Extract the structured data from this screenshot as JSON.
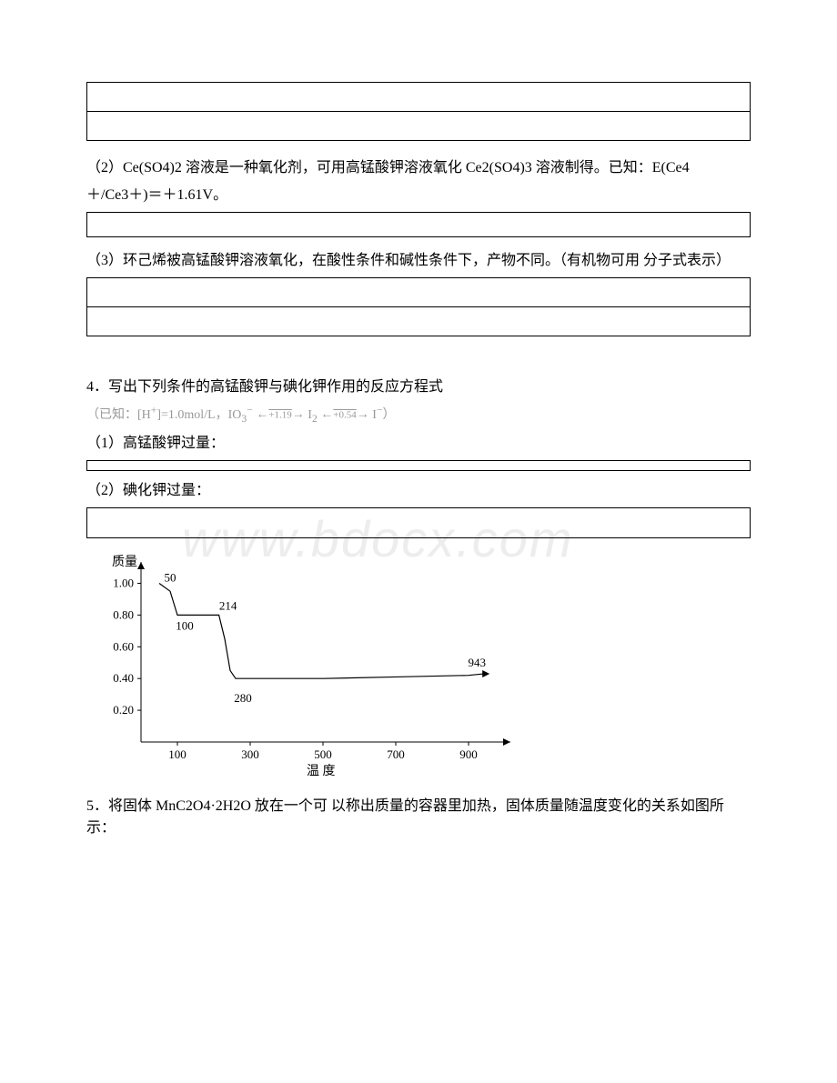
{
  "watermark": "www.bdocx.com",
  "q2": {
    "text_a": "（2）Ce(SO4)2 溶液是一种氧化剂，可用高锰酸钾溶液氧化 Ce2(SO4)3 溶液制得。已知：E(Ce4",
    "text_b": "＋/Ce3＋)＝＋1.61V。"
  },
  "q3": {
    "text": "（3）环己烯被高锰酸钾溶液氧化，在酸性条件和碱性条件下，产物不同。（有机物可用 分子式表示）"
  },
  "q4": {
    "intro": "4．写出下列条件的高锰酸钾与碘化钾作用的反应方程式",
    "equation": "（已知：[H⁺]=1.0mol/L，IO₃⁻ ←――→ I₂ ←――→ I⁻）",
    "eq_v1": "+1.19",
    "eq_v2": "+0.54",
    "sub1": "（1）高锰酸钾过量：",
    "sub2": "（2）碘化钾过量："
  },
  "chart": {
    "y_label": "质量",
    "x_label": "温    度",
    "x_ticks": [
      100,
      300,
      500,
      700,
      900
    ],
    "y_ticks": [
      "0.20",
      "0.40",
      "0.60",
      "0.80",
      "1.00"
    ],
    "annotations": {
      "p50": "50",
      "p100": "100",
      "p214": "214",
      "p280": "280",
      "p943": "943"
    },
    "axis_color": "#000000",
    "line_color": "#000000",
    "background": "#ffffff",
    "curve": [
      [
        50,
        1.0
      ],
      [
        80,
        0.95
      ],
      [
        100,
        0.8
      ],
      [
        160,
        0.8
      ],
      [
        214,
        0.8
      ],
      [
        230,
        0.65
      ],
      [
        245,
        0.45
      ],
      [
        260,
        0.4
      ],
      [
        280,
        0.4
      ],
      [
        500,
        0.4
      ],
      [
        700,
        0.41
      ],
      [
        900,
        0.42
      ],
      [
        943,
        0.43
      ]
    ]
  },
  "q5": {
    "text": "5．将固体 MnC2O4·2H2O 放在一个可 以称出质量的容器里加热，固体质量随温度变化的关系如图所示："
  }
}
